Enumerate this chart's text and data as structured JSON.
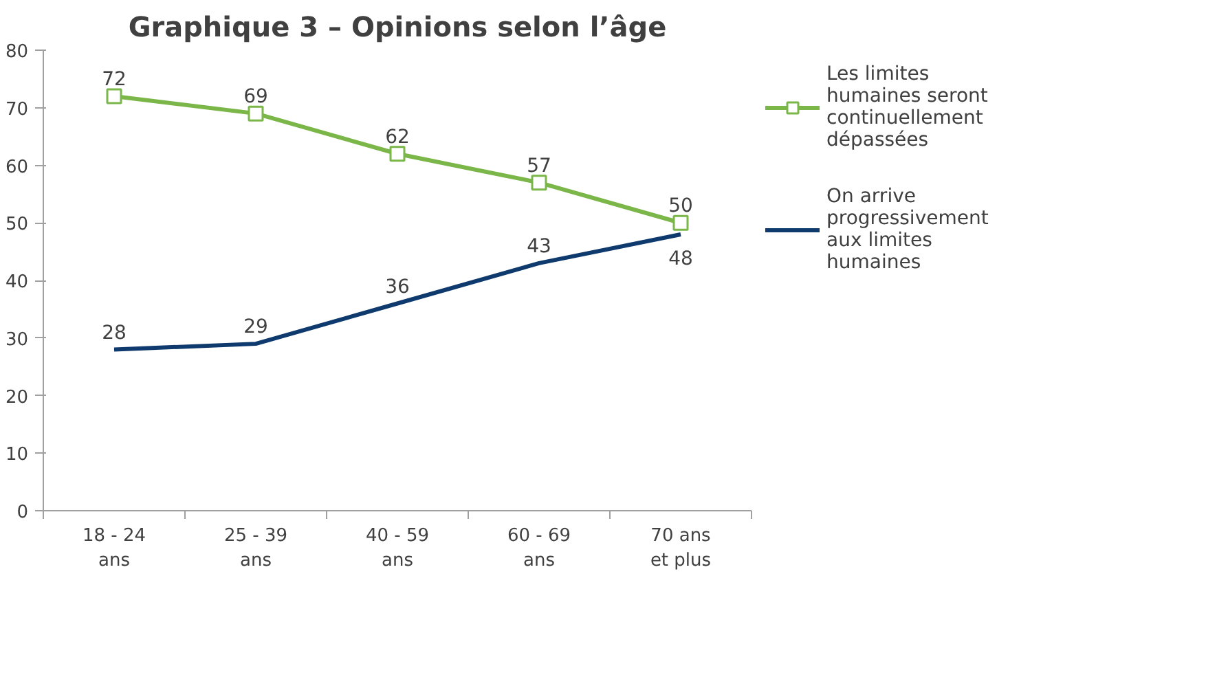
{
  "chart_data": {
    "type": "line",
    "title": "Graphique 3 – Opinions selon l’âge",
    "categories": [
      "18 - 24 ans",
      "25 - 39 ans",
      "40 - 59 ans",
      "60 - 69 ans",
      "70 ans et plus"
    ],
    "series": [
      {
        "name": "Les limites humaines seront continuellement dépassées",
        "color": "#7ab648",
        "marker": "square",
        "values": [
          72,
          69,
          62,
          57,
          50
        ]
      },
      {
        "name": "On arrive progressivement aux limites humaines",
        "color": "#0f3a6e",
        "marker": "none",
        "values": [
          28,
          29,
          36,
          43,
          48
        ]
      }
    ],
    "ylim": [
      0,
      80
    ],
    "yticks": [
      0,
      10,
      20,
      30,
      40,
      50,
      60,
      70,
      80
    ],
    "grid": false,
    "legend": "right",
    "data_labels": true
  }
}
